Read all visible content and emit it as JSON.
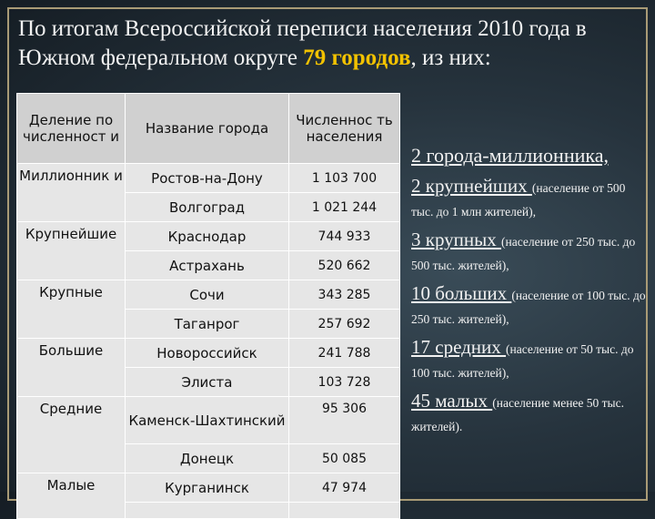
{
  "title": {
    "prefix": "По итогам Всероссийской переписи населения 2010 года в Южном федеральном округе ",
    "highlight_count": "79 городов",
    "suffix": ", из них:"
  },
  "table": {
    "headers": [
      "Деление по численност и",
      "Название города",
      "Численнос ть населения"
    ],
    "rows": [
      {
        "category": "Миллионник и",
        "city": "Ростов-на-Дону",
        "population": "1 103 700"
      },
      {
        "category": "",
        "city": "Волгоград",
        "population": "1 021 244"
      },
      {
        "category": "Крупнейшие",
        "city": "Краснодар",
        "population": "744 933"
      },
      {
        "category": "",
        "city": "Астрахань",
        "population": "520 662"
      },
      {
        "category": "Крупные",
        "city": "Сочи",
        "population": "343 285"
      },
      {
        "category": "",
        "city": "Таганрог",
        "population": "257 692"
      },
      {
        "category": "Большие",
        "city": "Новороссийск",
        "population": "241 788"
      },
      {
        "category": "",
        "city": "Элиста",
        "population": "103 728"
      },
      {
        "category": "Средние",
        "city": "Каменск-Шахтинский",
        "population": "95 306"
      },
      {
        "category": "",
        "city": "Донецк",
        "population": "50 085"
      },
      {
        "category": "Малые",
        "city": "Курганинск",
        "population": "47 974"
      }
    ]
  },
  "summary": [
    {
      "count_text": "2 города-миллионника,",
      "note": ""
    },
    {
      "count_text": "2 крупнейших ",
      "note": "(население от 500 тыс. до 1 млн жителей),"
    },
    {
      "count_text": "3 крупных ",
      "note": "(население от 250 тыс. до 500 тыс. жителей),"
    },
    {
      "count_text": "10 больших ",
      "note": "(население от 100 тыс. до 250 тыс. жителей),"
    },
    {
      "count_text": "17 средних ",
      "note": "(население от 50 тыс. до 100 тыс. жителей),"
    },
    {
      "count_text": "45 малых ",
      "note": "(население менее 50 тыс. жителей)."
    }
  ]
}
